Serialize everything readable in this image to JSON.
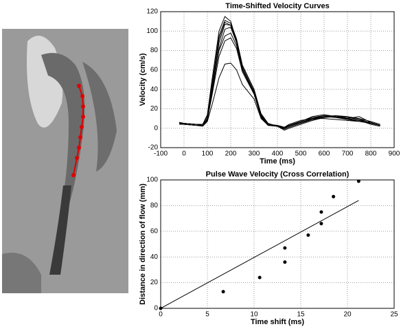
{
  "chart_data": [
    {
      "type": "line",
      "title": "Time-Shifted Velocity Curves",
      "xlabel": "Time (ms)",
      "ylabel": "Velocity (cm/s)",
      "x": [
        -20,
        0,
        50,
        80,
        100,
        120,
        150,
        175,
        200,
        225,
        250,
        300,
        330,
        360,
        400,
        430,
        450,
        500,
        550,
        600,
        650,
        700,
        750,
        800,
        840
      ],
      "series": [
        {
          "color": "#000000",
          "values": [
            6,
            5,
            4,
            4,
            14,
            50,
            100,
            115,
            110,
            90,
            62,
            38,
            12,
            3,
            2,
            0,
            2,
            6,
            10,
            13,
            12,
            10,
            12,
            6,
            3
          ]
        },
        {
          "color": "#000000",
          "values": [
            5,
            5,
            4,
            3,
            10,
            44,
            95,
            111,
            108,
            92,
            65,
            40,
            14,
            4,
            2,
            -1,
            1,
            5,
            9,
            12,
            13,
            11,
            9,
            5,
            3
          ]
        },
        {
          "color": "#000000",
          "values": [
            6,
            4,
            3,
            4,
            12,
            46,
            92,
            109,
            106,
            88,
            60,
            36,
            11,
            3,
            3,
            1,
            3,
            7,
            12,
            14,
            12,
            9,
            8,
            4,
            2
          ]
        },
        {
          "color": "#000000",
          "values": [
            4,
            5,
            4,
            4,
            9,
            40,
            88,
            107,
            106,
            90,
            64,
            40,
            15,
            5,
            2,
            0,
            2,
            6,
            10,
            12,
            11,
            10,
            8,
            6,
            3
          ]
        },
        {
          "color": "#000000",
          "values": [
            5,
            4,
            3,
            3,
            8,
            36,
            82,
            102,
            104,
            88,
            62,
            37,
            13,
            4,
            3,
            1,
            3,
            6,
            9,
            11,
            13,
            12,
            10,
            5,
            3
          ]
        },
        {
          "color": "#000000",
          "values": [
            6,
            5,
            4,
            3,
            10,
            38,
            80,
            95,
            98,
            85,
            60,
            36,
            12,
            4,
            2,
            -2,
            0,
            4,
            8,
            11,
            12,
            11,
            10,
            7,
            4
          ]
        },
        {
          "color": "#000000",
          "values": [
            5,
            4,
            3,
            3,
            9,
            34,
            74,
            90,
            93,
            82,
            58,
            35,
            11,
            3,
            2,
            0,
            3,
            7,
            11,
            13,
            11,
            9,
            7,
            5,
            3
          ]
        },
        {
          "color": "#000000",
          "values": [
            4,
            4,
            3,
            2,
            7,
            24,
            52,
            66,
            67,
            60,
            45,
            30,
            10,
            3,
            2,
            1,
            4,
            8,
            10,
            10,
            9,
            8,
            7,
            5,
            3
          ]
        }
      ],
      "xlim": [
        -100,
        900
      ],
      "xticks": [
        -100,
        0,
        100,
        200,
        300,
        400,
        500,
        600,
        700,
        800,
        900
      ],
      "ylim": [
        -20,
        120
      ],
      "yticks": [
        -20,
        0,
        20,
        40,
        60,
        80,
        100,
        120
      ],
      "grid": true
    },
    {
      "type": "scatter",
      "title": "Pulse Wave Velocity (Cross Correlation)",
      "xlabel": "Time shift (ms)",
      "ylabel": "Distance in direction of flow (mm)",
      "series": [
        {
          "mode": "markers",
          "color": "#000000",
          "x": [
            0,
            6.7,
            10.6,
            13.3,
            13.3,
            15.8,
            17.2,
            17.2,
            18.5,
            21.2
          ],
          "values": [
            0,
            13,
            24,
            36,
            47,
            57,
            66,
            75,
            87,
            99
          ]
        },
        {
          "mode": "line",
          "color": "#000000",
          "x": [
            0,
            21.2
          ],
          "values": [
            0,
            84
          ]
        }
      ],
      "xlim": [
        0,
        25
      ],
      "xticks": [
        0,
        5,
        10,
        15,
        20,
        25
      ],
      "ylim": [
        0,
        100
      ],
      "yticks": [
        0,
        20,
        40,
        60,
        80,
        100
      ],
      "grid": true
    }
  ]
}
